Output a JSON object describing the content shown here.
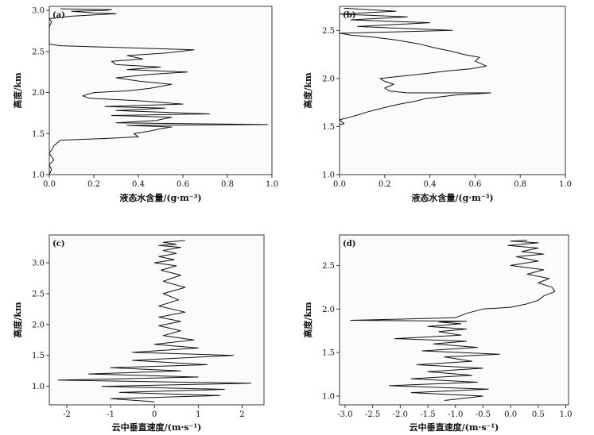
{
  "chart_data": [
    {
      "type": "line",
      "panel_label": "(a)",
      "xlabel": "液态水含量/(g·m⁻³)",
      "ylabel": "高度/km",
      "xlim": [
        0.0,
        1.0
      ],
      "ylim": [
        1.0,
        3.05
      ],
      "xticks": [
        "0.0",
        "0.2",
        "0.4",
        "0.6",
        "0.8",
        "1.0"
      ],
      "yticks": [
        "1.0",
        "1.5",
        "2.0",
        "2.5",
        "3.0"
      ],
      "x": [
        0.0,
        0.01,
        0.0,
        0.02,
        0.01,
        0.0,
        0.01,
        0.02,
        0.05,
        0.25,
        0.4,
        0.38,
        0.45,
        0.5,
        0.55,
        0.35,
        0.98,
        0.3,
        0.48,
        0.55,
        0.28,
        0.72,
        0.3,
        0.52,
        0.25,
        0.6,
        0.4,
        0.18,
        0.15,
        0.2,
        0.35,
        0.45,
        0.55,
        0.4,
        0.3,
        0.45,
        0.62,
        0.35,
        0.5,
        0.3,
        0.28,
        0.42,
        0.35,
        0.52,
        0.65,
        0.05,
        0.0,
        0.0,
        0.0,
        0.01,
        0.0,
        0.1,
        0.3,
        0.2,
        0.1,
        0.25,
        0.28,
        0.05
      ],
      "y": [
        1.0,
        1.06,
        1.12,
        1.18,
        1.22,
        1.26,
        1.3,
        1.35,
        1.42,
        1.44,
        1.46,
        1.5,
        1.53,
        1.56,
        1.58,
        1.6,
        1.61,
        1.63,
        1.66,
        1.7,
        1.72,
        1.74,
        1.78,
        1.81,
        1.83,
        1.86,
        1.9,
        1.93,
        1.96,
        2.0,
        2.02,
        2.05,
        2.1,
        2.14,
        2.18,
        2.22,
        2.25,
        2.28,
        2.31,
        2.34,
        2.38,
        2.41,
        2.45,
        2.48,
        2.52,
        2.57,
        2.59,
        2.7,
        2.8,
        2.86,
        2.9,
        2.93,
        2.96,
        2.97,
        2.99,
        3.0,
        3.01,
        3.02
      ]
    },
    {
      "type": "line",
      "panel_label": "(b)",
      "xlabel": "液态水含量/(g·m⁻³)",
      "ylabel": "高度/km",
      "xlim": [
        0.0,
        1.0
      ],
      "ylim": [
        1.0,
        2.75
      ],
      "xticks": [
        "0.0",
        "0.2",
        "0.4",
        "0.6",
        "0.8",
        "1.0"
      ],
      "yticks": [
        "1.0",
        "1.5",
        "2.0",
        "2.5"
      ],
      "x": [
        0.0,
        0.02,
        0.0,
        0.05,
        0.08,
        0.12,
        0.17,
        0.22,
        0.28,
        0.33,
        0.38,
        0.45,
        0.52,
        0.6,
        0.67,
        0.3,
        0.22,
        0.2,
        0.24,
        0.2,
        0.18,
        0.26,
        0.38,
        0.48,
        0.58,
        0.65,
        0.6,
        0.62,
        0.55,
        0.5,
        0.42,
        0.35,
        0.25,
        0.15,
        0.05,
        0.0,
        0.5,
        0.08,
        0.4,
        0.05,
        0.3,
        0.0,
        0.25,
        0.02
      ],
      "y": [
        1.52,
        1.53,
        1.57,
        1.6,
        1.62,
        1.65,
        1.68,
        1.71,
        1.74,
        1.76,
        1.79,
        1.81,
        1.83,
        1.84,
        1.85,
        1.85,
        1.87,
        1.9,
        1.94,
        1.97,
        2.0,
        2.02,
        2.05,
        2.08,
        2.1,
        2.13,
        2.18,
        2.22,
        2.25,
        2.28,
        2.32,
        2.36,
        2.4,
        2.43,
        2.45,
        2.47,
        2.5,
        2.54,
        2.58,
        2.61,
        2.64,
        2.67,
        2.7,
        2.73
      ]
    },
    {
      "type": "line",
      "panel_label": "(c)",
      "xlabel": "云中垂直速度/(m·s⁻¹)",
      "ylabel": "高度/km",
      "xlim": [
        -2.4,
        2.5
      ],
      "ylim": [
        0.7,
        3.45
      ],
      "xticks": [
        "-2",
        "-1",
        "0",
        "1",
        "2"
      ],
      "yticks": [
        "1.0",
        "1.5",
        "2.0",
        "2.5",
        "3.0"
      ],
      "x": [
        0.0,
        -1.0,
        1.5,
        -0.8,
        1.6,
        -1.2,
        2.2,
        -2.2,
        1.0,
        -1.5,
        0.6,
        -1.0,
        1.2,
        -0.5,
        1.8,
        -0.5,
        1.0,
        0.0,
        0.9,
        0.2,
        0.6,
        0.1,
        0.6,
        0.1,
        0.7,
        0.1,
        0.55,
        0.2,
        0.7,
        0.2,
        0.6,
        0.15,
        0.5,
        0.0,
        0.45,
        0.1,
        0.5,
        0.2,
        0.6,
        0.1,
        0.5,
        0.2,
        0.7
      ],
      "y": [
        0.75,
        0.8,
        0.85,
        0.9,
        0.95,
        1.0,
        1.05,
        1.1,
        1.15,
        1.2,
        1.25,
        1.3,
        1.35,
        1.42,
        1.5,
        1.55,
        1.62,
        1.68,
        1.75,
        1.82,
        1.9,
        1.98,
        2.05,
        2.12,
        2.2,
        2.3,
        2.4,
        2.5,
        2.6,
        2.7,
        2.8,
        2.88,
        2.95,
        3.0,
        3.05,
        3.1,
        3.15,
        3.2,
        3.25,
        3.28,
        3.3,
        3.33,
        3.36
      ]
    },
    {
      "type": "line",
      "panel_label": "(d)",
      "xlabel": "云中垂直速度/(m·s⁻¹)",
      "ylabel": "高度/km",
      "xlim": [
        -3.1,
        1.05
      ],
      "ylim": [
        0.9,
        2.85
      ],
      "xticks": [
        "-3.0",
        "-2.5",
        "-2.0",
        "-1.5",
        "-1.0",
        "-0.5",
        "0.0",
        "0.5",
        "1.0"
      ],
      "yticks": [
        "1.0",
        "1.5",
        "2.0",
        "2.5"
      ],
      "x": [
        -1.2,
        -0.5,
        -1.8,
        -0.4,
        -2.2,
        -0.6,
        -1.8,
        -0.7,
        -1.5,
        -0.5,
        -1.7,
        -0.7,
        -1.2,
        -0.2,
        -1.6,
        -0.6,
        -1.4,
        -0.8,
        -2.1,
        -0.9,
        -1.3,
        -0.8,
        -1.5,
        -0.9,
        -1.3,
        -0.8,
        -2.9,
        -1.0,
        -0.8,
        -0.5,
        0.0,
        0.3,
        0.5,
        0.6,
        0.8,
        0.75,
        0.5,
        0.7,
        0.3,
        0.6,
        0.0,
        0.5,
        0.1,
        0.6,
        0.2,
        0.5,
        -0.05,
        0.5,
        0.0,
        0.3
      ],
      "y": [
        0.95,
        1.0,
        1.04,
        1.08,
        1.12,
        1.16,
        1.2,
        1.24,
        1.28,
        1.32,
        1.36,
        1.4,
        1.45,
        1.48,
        1.52,
        1.56,
        1.6,
        1.63,
        1.66,
        1.7,
        1.74,
        1.77,
        1.8,
        1.83,
        1.85,
        1.86,
        1.87,
        1.9,
        1.95,
        2.0,
        2.02,
        2.06,
        2.1,
        2.15,
        2.2,
        2.25,
        2.3,
        2.35,
        2.4,
        2.45,
        2.5,
        2.55,
        2.6,
        2.63,
        2.66,
        2.7,
        2.73,
        2.76,
        2.78,
        2.79
      ]
    }
  ]
}
